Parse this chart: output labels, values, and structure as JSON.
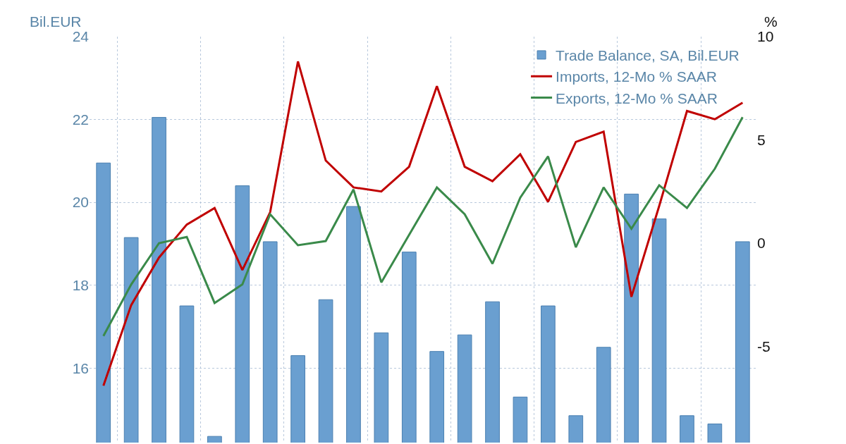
{
  "chart_data": {
    "type": "bar",
    "ylabel": "Bil.EUR",
    "y2label": "%",
    "categories": [
      null,
      null,
      null,
      null,
      null,
      null,
      null,
      null,
      null,
      null,
      null,
      null,
      null,
      null,
      null,
      null,
      null,
      null,
      null,
      null,
      null,
      null,
      null,
      null
    ],
    "series": [
      {
        "name": "Trade Balance, SA, Bil.EUR",
        "color": "#6a9fd0",
        "values": [
          20.95,
          19.15,
          22.05,
          17.5,
          14.35,
          20.4,
          19.05,
          16.3,
          17.65,
          19.9,
          16.85,
          18.8,
          16.4,
          16.8,
          17.6,
          15.3,
          17.5,
          14.85,
          16.5,
          20.2,
          19.6,
          14.85,
          14.65,
          19.05
        ]
      },
      {
        "name": "Imports, 12-Mo % SAAR",
        "type": "line",
        "axis": "y2",
        "color": "#c00000",
        "values": [
          -6.9,
          -3.0,
          -0.7,
          0.9,
          1.7,
          -1.3,
          1.5,
          8.8,
          4.0,
          2.7,
          2.5,
          3.7,
          7.6,
          3.7,
          3.0,
          4.3,
          2.0,
          4.9,
          5.4,
          -2.6,
          1.8,
          6.4,
          6.0,
          6.8
        ]
      },
      {
        "name": "Exports, 12-Mo % SAAR",
        "type": "line",
        "axis": "y2",
        "color": "#3a8a4a",
        "values": [
          -4.5,
          -2.0,
          0.0,
          0.3,
          -2.9,
          -2.0,
          1.4,
          -0.1,
          0.1,
          2.6,
          -1.9,
          0.4,
          2.7,
          1.4,
          -1.0,
          2.2,
          4.2,
          -0.2,
          2.7,
          0.7,
          2.8,
          1.7,
          3.6,
          6.1
        ]
      }
    ],
    "ylim": [
      14.2,
      24
    ],
    "yticks": [
      16,
      18,
      20,
      22,
      24
    ],
    "y2lim": [
      -9.66,
      10
    ],
    "y2ticks": [
      -5,
      0,
      5,
      10
    ],
    "grid": true,
    "legend": "top right",
    "line_style": "solid"
  }
}
